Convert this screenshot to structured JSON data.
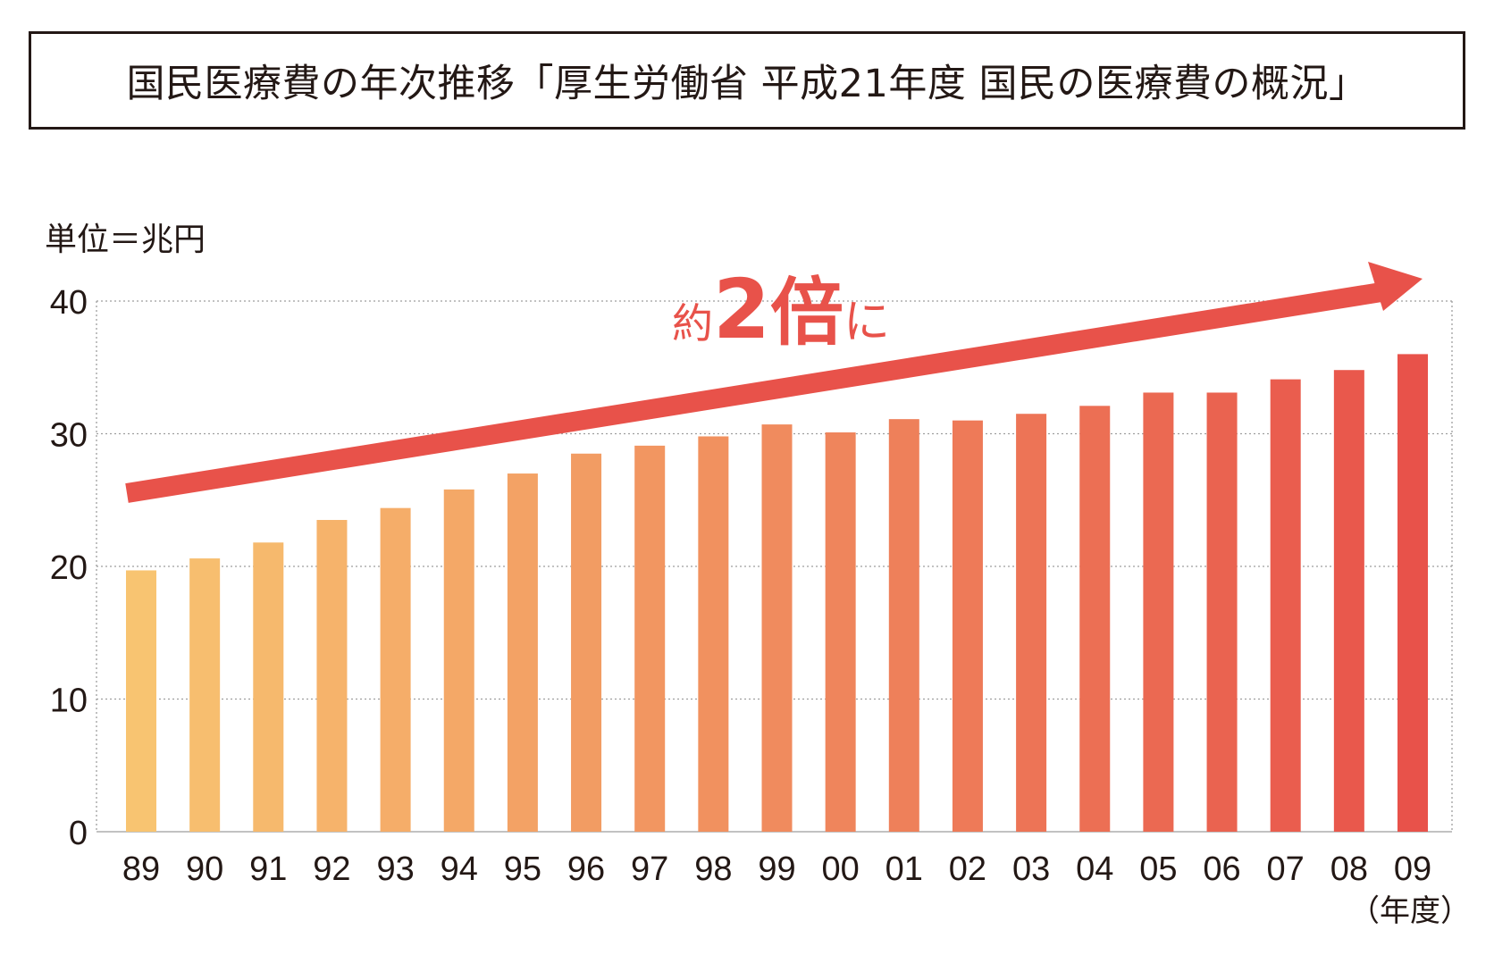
{
  "title": "国民医療費の年次推移「厚生労働省 平成21年度 国民の医療費の概況」",
  "unit_label": "単位＝兆円",
  "year_unit_label": "（年度）",
  "callout": {
    "prefix": "約",
    "number": "2",
    "suffix_kanji": "倍",
    "suffix_kana": "に"
  },
  "colors": {
    "bar_start": "#f8c471",
    "bar_end": "#e8524a",
    "arrow": "#e8524a",
    "grid": "#9e9e9e",
    "text": "#231815"
  },
  "chart_data": {
    "type": "bar",
    "categories": [
      "89",
      "90",
      "91",
      "92",
      "93",
      "94",
      "95",
      "96",
      "97",
      "98",
      "99",
      "00",
      "01",
      "02",
      "03",
      "04",
      "05",
      "06",
      "07",
      "08",
      "09"
    ],
    "values": [
      19.7,
      20.6,
      21.8,
      23.5,
      24.4,
      25.8,
      27.0,
      28.5,
      29.1,
      29.8,
      30.7,
      30.1,
      31.1,
      31.0,
      31.5,
      32.1,
      33.1,
      33.1,
      34.1,
      34.8,
      36.0
    ],
    "xlabel": "（年度）",
    "ylabel": "単位＝兆円",
    "ylim": [
      0,
      40
    ],
    "yticks": [
      0,
      10,
      20,
      30,
      40
    ],
    "grid": true,
    "annotation": "約2倍に"
  }
}
